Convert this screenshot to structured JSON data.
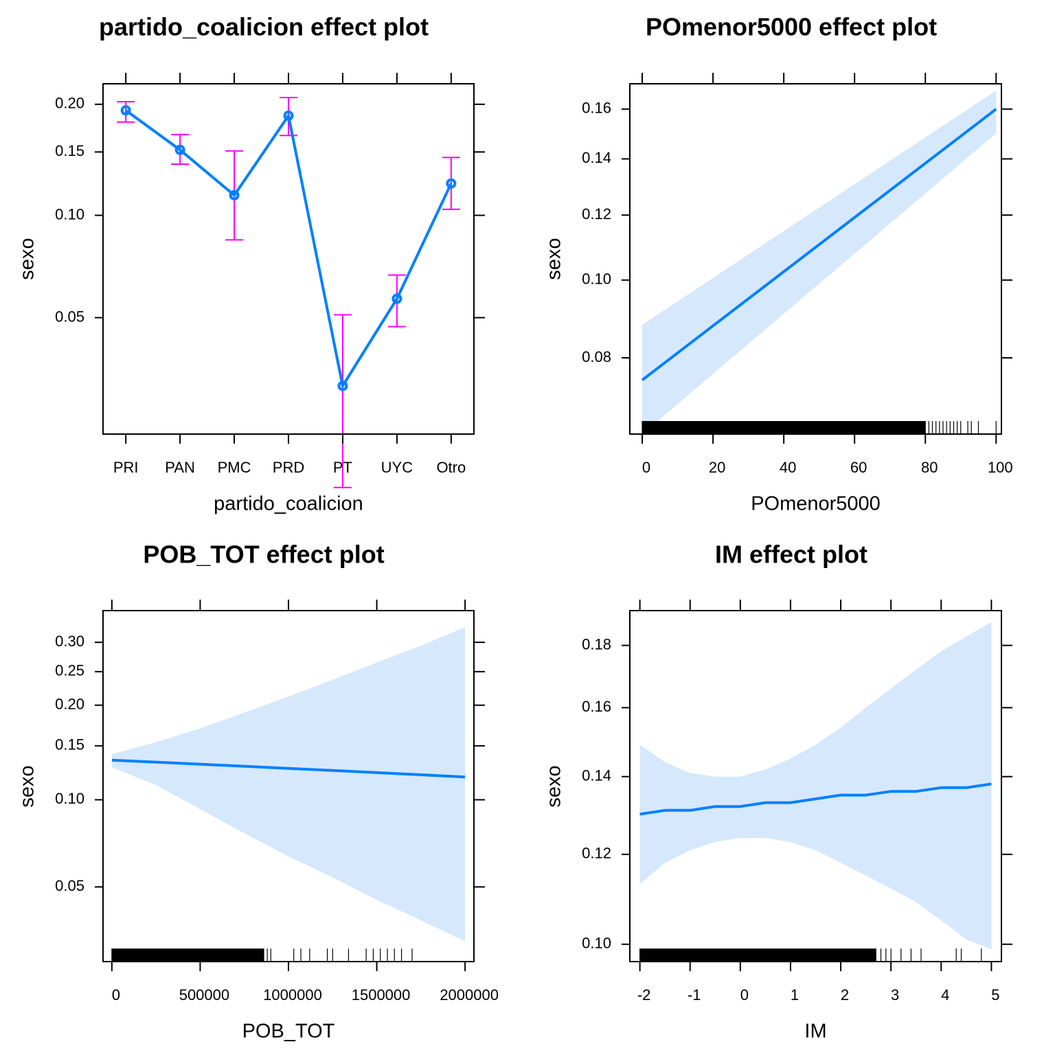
{
  "colors": {
    "line": "#0080ff",
    "band": "#d6e8fb",
    "error_bars": "#ff00ff",
    "frame": "#000000"
  },
  "chart_data": [
    {
      "id": "partido",
      "type": "line",
      "title": "partido_coalicion effect plot",
      "xlabel": "partido_coalicion",
      "ylabel": "sexo",
      "y_scale": "logit",
      "ylim": [
        0.022,
        0.225
      ],
      "categories": [
        "PRI",
        "PAN",
        "PMC",
        "PRD",
        "PT",
        "UYC",
        "Otro"
      ],
      "series": [
        {
          "values": [
            0.193,
            0.152,
            0.114,
            0.187,
            0.031,
            0.057,
            0.123
          ],
          "lower": [
            0.18,
            0.139,
            0.085,
            0.166,
            0.015,
            0.047,
            0.104
          ],
          "upper": [
            0.203,
            0.167,
            0.151,
            0.208,
            0.051,
            0.067,
            0.145
          ]
        }
      ],
      "yticks": [
        0.05,
        0.1,
        0.15,
        0.2
      ],
      "ytick_labels": [
        "0.05",
        "0.10",
        "0.15",
        "0.20"
      ],
      "grid": false
    },
    {
      "id": "pomenor",
      "type": "line",
      "title": "POmenor5000 effect plot",
      "xlabel": "POmenor5000",
      "ylabel": "sexo",
      "y_scale": "logit",
      "xlim": [
        -3.5,
        101.5
      ],
      "ylim": [
        0.064,
        0.171
      ],
      "x": [
        0,
        100
      ],
      "series": [
        {
          "values": [
            0.075,
            0.16
          ],
          "lower": [
            0.064,
            0.15
          ],
          "upper": [
            0.088,
            0.168
          ]
        }
      ],
      "xticks": [
        0,
        20,
        40,
        60,
        80,
        100
      ],
      "xtick_labels": [
        "0",
        "20",
        "40",
        "60",
        "80",
        "100"
      ],
      "yticks": [
        0.08,
        0.1,
        0.12,
        0.14,
        0.16
      ],
      "ytick_labels": [
        "0.08",
        "0.10",
        "0.12",
        "0.14",
        "0.16"
      ],
      "rug": [
        0,
        2,
        4,
        6,
        8,
        10,
        12,
        14,
        16,
        18,
        20,
        22,
        24,
        26,
        28,
        30,
        32,
        34,
        36,
        38,
        40,
        42,
        44,
        46,
        48,
        50,
        52,
        54,
        56,
        58,
        60,
        62,
        64,
        66,
        68,
        70,
        72,
        74,
        76,
        78,
        80,
        81,
        82,
        83,
        84,
        85,
        86,
        87,
        88,
        89,
        90,
        92,
        93,
        95,
        100
      ],
      "grid": false
    },
    {
      "id": "pobtot",
      "type": "line",
      "title": "POB_TOT effect plot",
      "xlabel": "POB_TOT",
      "ylabel": "sexo",
      "y_scale": "logit",
      "xlim": [
        -50000,
        2050000
      ],
      "ylim": [
        0.027,
        0.36
      ],
      "x": [
        0,
        250000,
        500000,
        750000,
        1000000,
        1250000,
        1500000,
        1750000,
        2000000
      ],
      "series": [
        {
          "values": [
            0.135,
            0.133,
            0.131,
            0.129,
            0.127,
            0.125,
            0.123,
            0.121,
            0.119
          ],
          "lower": [
            0.128,
            0.112,
            0.093,
            0.077,
            0.064,
            0.054,
            0.045,
            0.038,
            0.032
          ],
          "upper": [
            0.141,
            0.154,
            0.17,
            0.19,
            0.212,
            0.237,
            0.265,
            0.294,
            0.328
          ]
        }
      ],
      "xticks": [
        0,
        500000,
        1000000,
        1500000,
        2000000
      ],
      "xtick_labels": [
        "0",
        "500000",
        "1000000",
        "1500000",
        "2000000"
      ],
      "yticks": [
        0.05,
        0.1,
        0.15,
        0.2,
        0.25,
        0.3
      ],
      "ytick_labels": [
        "0.05",
        "0.10",
        "0.15",
        "0.20",
        "0.25",
        "0.30"
      ],
      "rug": [
        0,
        20000,
        40000,
        60000,
        80000,
        100000,
        120000,
        140000,
        160000,
        180000,
        200000,
        220000,
        240000,
        260000,
        280000,
        300000,
        320000,
        340000,
        360000,
        380000,
        400000,
        420000,
        440000,
        460000,
        480000,
        500000,
        520000,
        540000,
        560000,
        580000,
        600000,
        620000,
        640000,
        660000,
        680000,
        700000,
        720000,
        740000,
        760000,
        780000,
        800000,
        820000,
        840000,
        860000,
        880000,
        900000,
        1030000,
        1070000,
        1120000,
        1220000,
        1250000,
        1340000,
        1440000,
        1480000,
        1520000,
        1560000,
        1600000,
        1640000,
        1700000
      ],
      "grid": false
    },
    {
      "id": "im",
      "type": "line",
      "title": "IM effect plot",
      "xlabel": "IM",
      "ylabel": "sexo",
      "y_scale": "logit",
      "xlim": [
        -2.2,
        5.2
      ],
      "ylim": [
        0.0965,
        0.192
      ],
      "x": [
        -2,
        -1.5,
        -1,
        -0.5,
        0,
        0.5,
        1,
        1.5,
        2,
        2.5,
        3,
        3.5,
        4,
        4.5,
        5
      ],
      "series": [
        {
          "values": [
            0.13,
            0.131,
            0.131,
            0.132,
            0.132,
            0.133,
            0.133,
            0.134,
            0.135,
            0.135,
            0.136,
            0.136,
            0.137,
            0.137,
            0.138
          ],
          "lower": [
            0.113,
            0.118,
            0.121,
            0.123,
            0.124,
            0.124,
            0.123,
            0.121,
            0.118,
            0.115,
            0.112,
            0.109,
            0.105,
            0.101,
            0.099
          ],
          "upper": [
            0.149,
            0.144,
            0.141,
            0.14,
            0.14,
            0.142,
            0.145,
            0.149,
            0.154,
            0.16,
            0.166,
            0.172,
            0.178,
            0.183,
            0.188
          ]
        }
      ],
      "xticks": [
        -2,
        -1,
        0,
        1,
        2,
        3,
        4,
        5
      ],
      "xtick_labels": [
        "-2",
        "-1",
        "0",
        "1",
        "2",
        "3",
        "4",
        "5"
      ],
      "yticks": [
        0.1,
        0.12,
        0.14,
        0.16,
        0.18
      ],
      "ytick_labels": [
        "0.10",
        "0.12",
        "0.14",
        "0.16",
        "0.18"
      ],
      "rug": [
        -2,
        -1.8,
        -1.6,
        -1.4,
        -1.2,
        -1,
        -0.8,
        -0.6,
        -0.4,
        -0.2,
        0,
        0.2,
        0.4,
        0.6,
        0.8,
        1,
        1.2,
        1.4,
        1.6,
        1.8,
        2,
        2.2,
        2.4,
        2.6,
        2.7,
        2.8,
        2.9,
        3.0,
        3.2,
        3.4,
        3.6,
        4.3,
        4.4,
        4.8
      ],
      "grid": false
    }
  ]
}
